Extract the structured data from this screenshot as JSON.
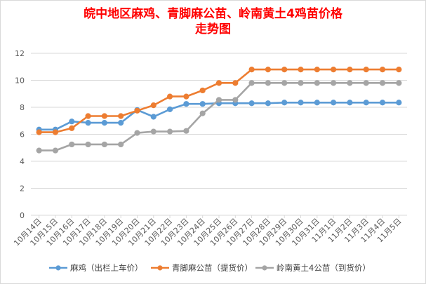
{
  "chart_data": {
    "type": "line",
    "title_line1": "皖中地区麻鸡、青脚麻公苗、岭南黄土4鸡苗价格",
    "title_line2": "走势图",
    "x": [
      "10月14日",
      "10月15日",
      "10月16日",
      "10月17日",
      "10月18日",
      "10月19日",
      "10月20日",
      "10月21日",
      "10月22日",
      "10月23日",
      "10月24日",
      "10月25日",
      "10月26日",
      "10月27日",
      "10月28日",
      "10月29日",
      "10月30日",
      "10月31日",
      "11月1日",
      "11月2日",
      "11月3日",
      "11月4日",
      "11月5日"
    ],
    "ylim": [
      0,
      12
    ],
    "yticks": [
      0,
      2,
      4,
      6,
      8,
      10,
      12
    ],
    "grid": true,
    "legend_position": "bottom",
    "series": [
      {
        "name": "麻鸡（出栏上车价）",
        "color": "#5b9bd5",
        "values": [
          6.35,
          6.35,
          6.95,
          6.85,
          6.85,
          6.85,
          7.8,
          7.3,
          7.85,
          8.25,
          8.25,
          8.3,
          8.3,
          8.3,
          8.3,
          8.35,
          8.35,
          8.35,
          8.35,
          8.35,
          8.35,
          8.35,
          8.35
        ]
      },
      {
        "name": "青脚麻公苗（提货价）",
        "color": "#ed7d31",
        "values": [
          6.15,
          6.15,
          6.45,
          7.35,
          7.35,
          7.35,
          7.75,
          8.15,
          8.8,
          8.8,
          9.25,
          9.8,
          9.8,
          10.8,
          10.8,
          10.8,
          10.8,
          10.8,
          10.8,
          10.8,
          10.8,
          10.8,
          10.8
        ]
      },
      {
        "name": "岭南黄土4公苗（到货价）",
        "color": "#a5a5a5",
        "values": [
          4.8,
          4.8,
          5.25,
          5.25,
          5.25,
          5.25,
          6.1,
          6.2,
          6.2,
          6.25,
          7.55,
          8.55,
          8.55,
          9.8,
          9.8,
          9.8,
          9.8,
          9.8,
          9.8,
          9.8,
          9.8,
          9.8,
          9.8
        ]
      }
    ]
  }
}
